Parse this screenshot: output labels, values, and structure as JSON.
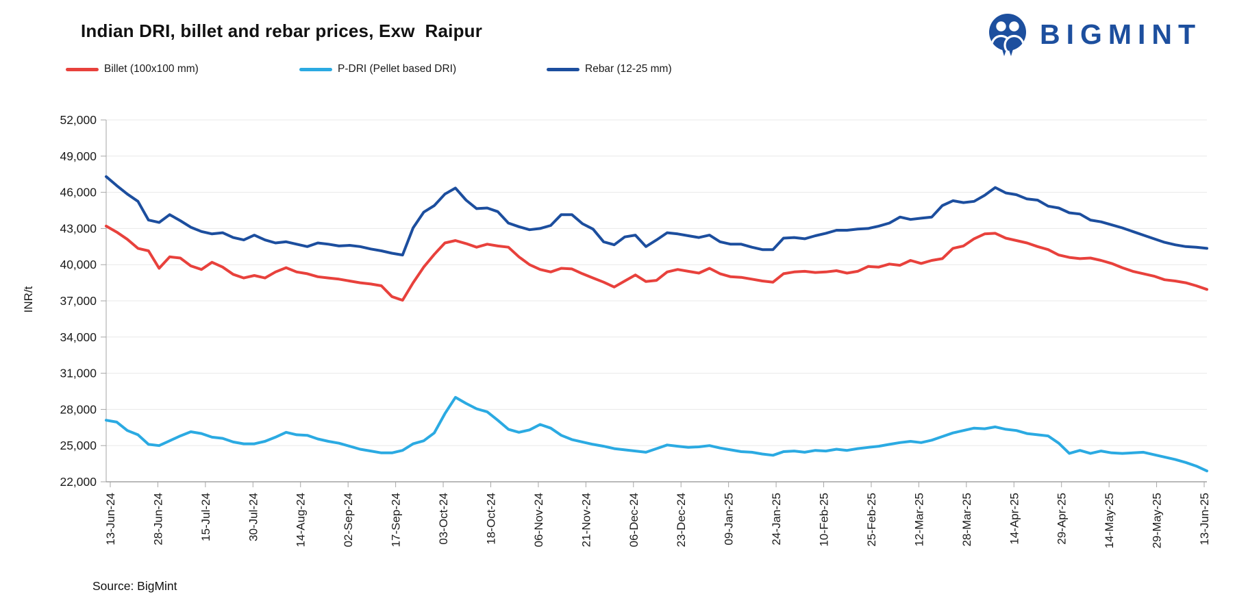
{
  "header": {
    "title": "Indian DRI, billet and rebar prices, Exw  Raipur",
    "logo_text": "BIGMINT",
    "brand_color": "#1d4f9e"
  },
  "source_note": "Source: BigMint",
  "chart_data": {
    "type": "line",
    "title": "Indian DRI, billet and rebar prices, Exw Raipur",
    "xlabel": "",
    "ylabel": "INR/t",
    "ylim": [
      22000,
      52000
    ],
    "ytick_step": 3000,
    "y_ticks": [
      22000,
      25000,
      28000,
      31000,
      34000,
      37000,
      40000,
      43000,
      46000,
      49000,
      52000
    ],
    "grid": "horizontal",
    "legend_position": "top",
    "x_labels": [
      "13-Jun-24",
      "28-Jun-24",
      "15-Jul-24",
      "30-Jul-24",
      "14-Aug-24",
      "02-Sep-24",
      "17-Sep-24",
      "03-Oct-24",
      "18-Oct-24",
      "06-Nov-24",
      "21-Nov-24",
      "06-Dec-24",
      "23-Dec-24",
      "09-Jan-25",
      "24-Jan-25",
      "10-Feb-25",
      "25-Feb-25",
      "12-Mar-25",
      "28-Mar-25",
      "14-Apr-25",
      "29-Apr-25",
      "14-May-25",
      "29-May-25",
      "13-Jun-25"
    ],
    "axis_color": "#a6a6a6",
    "gridline_color": "#e8e8e8",
    "series": [
      {
        "name": "Billet (100x100 mm)",
        "color": "#e8413c",
        "values": [
          43200,
          42700,
          42100,
          41350,
          41150,
          39700,
          40650,
          40550,
          39900,
          39600,
          40200,
          39800,
          39200,
          38900,
          39100,
          38900,
          39400,
          39750,
          39400,
          39250,
          39000,
          38900,
          38800,
          38650,
          38500,
          38400,
          38250,
          37350,
          37050,
          38500,
          39800,
          40850,
          41800,
          42000,
          41750,
          41450,
          41700,
          41550,
          41450,
          40650,
          40000,
          39600,
          39400,
          39700,
          39650,
          39250,
          38900,
          38550,
          38150,
          38650,
          39150,
          38600,
          38700,
          39400,
          39600,
          39450,
          39300,
          39700,
          39250,
          39000,
          38950,
          38800,
          38650,
          38550,
          39250,
          39400,
          39450,
          39350,
          39400,
          39500,
          39300,
          39450,
          39850,
          39800,
          40050,
          39950,
          40350,
          40100,
          40350,
          40500,
          41350,
          41550,
          42150,
          42550,
          42600,
          42200,
          42000,
          41800,
          41500,
          41250,
          40800,
          40600,
          40500,
          40550,
          40350,
          40100,
          39750,
          39450,
          39250,
          39050,
          38750,
          38650,
          38500,
          38250,
          37950
        ]
      },
      {
        "name": "P-DRI (Pellet based DRI)",
        "color": "#2baae2",
        "values": [
          27100,
          26950,
          26250,
          25900,
          25100,
          25000,
          25400,
          25800,
          26150,
          26000,
          25700,
          25600,
          25300,
          25150,
          25150,
          25350,
          25700,
          26100,
          25900,
          25850,
          25550,
          25350,
          25200,
          24950,
          24700,
          24550,
          24400,
          24400,
          24600,
          25150,
          25400,
          26050,
          27650,
          29000,
          28500,
          28050,
          27800,
          27100,
          26350,
          26100,
          26300,
          26750,
          26450,
          25850,
          25500,
          25300,
          25100,
          24950,
          24750,
          24650,
          24550,
          24450,
          24750,
          25050,
          24950,
          24850,
          24900,
          25000,
          24800,
          24650,
          24500,
          24450,
          24300,
          24200,
          24500,
          24550,
          24450,
          24600,
          24550,
          24700,
          24600,
          24750,
          24850,
          24950,
          25100,
          25250,
          25350,
          25250,
          25450,
          25750,
          26050,
          26250,
          26450,
          26400,
          26550,
          26350,
          26250,
          26000,
          25900,
          25800,
          25200,
          24350,
          24600,
          24350,
          24550,
          24400,
          24350,
          24400,
          24450,
          24250,
          24050,
          23850,
          23600,
          23300,
          22900
        ]
      },
      {
        "name": "Rebar (12-25 mm)",
        "color": "#1c4e9e",
        "values": [
          47300,
          46550,
          45850,
          45250,
          43700,
          43500,
          44150,
          43650,
          43100,
          42750,
          42550,
          42650,
          42250,
          42050,
          42450,
          42050,
          41800,
          41900,
          41700,
          41500,
          41800,
          41700,
          41550,
          41600,
          41500,
          41300,
          41150,
          40950,
          40800,
          43050,
          44350,
          44900,
          45850,
          46350,
          45350,
          44650,
          44700,
          44400,
          43450,
          43150,
          42900,
          43000,
          43250,
          44150,
          44150,
          43400,
          42950,
          41900,
          41650,
          42300,
          42450,
          41500,
          42050,
          42650,
          42550,
          42400,
          42250,
          42450,
          41900,
          41700,
          41700,
          41450,
          41250,
          41250,
          42200,
          42250,
          42150,
          42400,
          42600,
          42850,
          42850,
          42950,
          43000,
          43200,
          43450,
          43950,
          43750,
          43850,
          43950,
          44900,
          45300,
          45150,
          45250,
          45750,
          46400,
          45950,
          45800,
          45450,
          45350,
          44850,
          44700,
          44300,
          44200,
          43700,
          43550,
          43300,
          43050,
          42750,
          42450,
          42150,
          41850,
          41650,
          41500,
          41450,
          41350
        ]
      }
    ]
  }
}
